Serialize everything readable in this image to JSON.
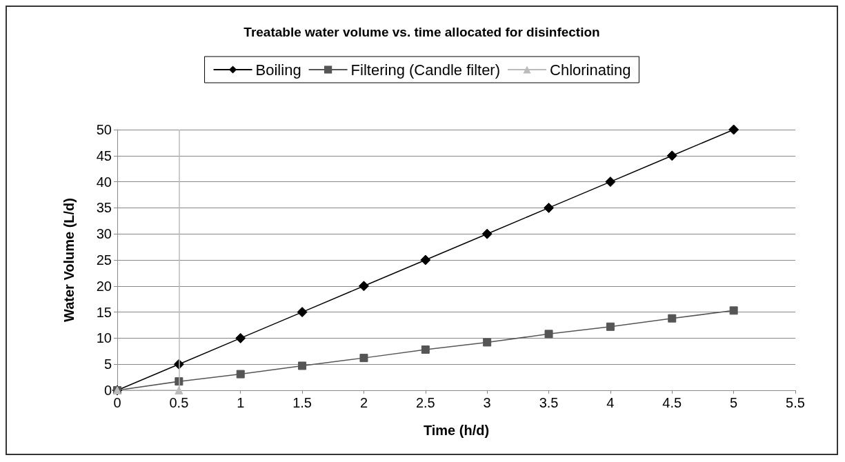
{
  "chart_data": {
    "type": "line",
    "title": "Treatable water volume vs. time allocated for disinfection",
    "xlabel": "Time (h/d)",
    "ylabel": "Water Volume (L/d)",
    "series": [
      {
        "name": "Boiling",
        "color": "#000000",
        "marker": "diamond",
        "x": [
          0,
          0.5,
          1,
          1.5,
          2,
          2.5,
          3,
          3.5,
          4,
          4.5,
          5
        ],
        "values": [
          0,
          5,
          10,
          15,
          20,
          25,
          30,
          35,
          40,
          45,
          50
        ]
      },
      {
        "name": "Filtering (Candle filter)",
        "color": "#555555",
        "marker": "square",
        "x": [
          0,
          0.5,
          1,
          1.5,
          2,
          2.5,
          3,
          3.5,
          4,
          4.5,
          5
        ],
        "values": [
          0,
          1.7,
          3.1,
          4.7,
          6.2,
          7.8,
          9.2,
          10.8,
          12.2,
          13.8,
          15.3
        ]
      },
      {
        "name": "Chlorinating",
        "color": "#bbbbbb",
        "marker": "triangle",
        "x": [
          0,
          0.5
        ],
        "values": [
          0,
          0
        ]
      }
    ],
    "ref_lines": [
      {
        "axis": "x",
        "value": 0.5,
        "color": "#bbbbbb"
      }
    ],
    "xlim": [
      0,
      5.5
    ],
    "xticks": [
      0,
      0.5,
      1,
      1.5,
      2,
      2.5,
      3,
      3.5,
      4,
      4.5,
      5,
      5.5
    ],
    "ylim": [
      0,
      50
    ],
    "yticks": [
      0,
      5,
      10,
      15,
      20,
      25,
      30,
      35,
      40,
      45,
      50
    ],
    "grid": "y",
    "legend": "top",
    "line_style": "solid"
  }
}
